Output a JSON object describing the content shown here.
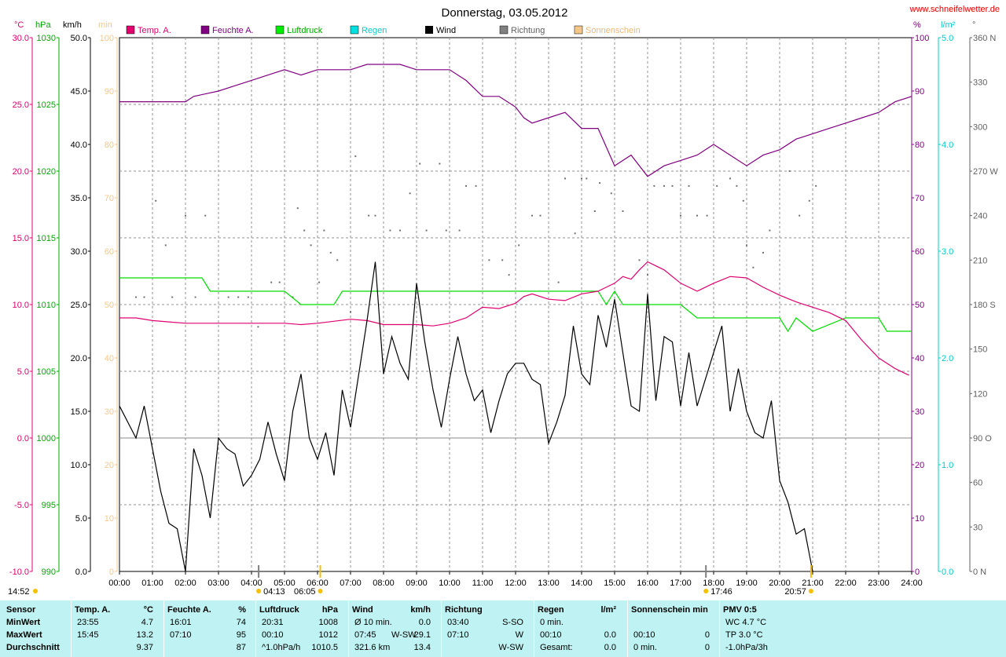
{
  "header": {
    "title": "Donnerstag, 03.05.2012",
    "website": "www.schneifelwetter.de",
    "time_marker": "14:52"
  },
  "axes": {
    "temp": {
      "unit": "°C",
      "ticks": [
        "30.0",
        "25.0",
        "20.0",
        "15.0",
        "10.0",
        "5.0",
        "0.0",
        "-5.0",
        "-10.0"
      ]
    },
    "pressure": {
      "unit": "hPa",
      "ticks": [
        "1030",
        "1025",
        "1020",
        "1015",
        "1010",
        "1005",
        "1000",
        "995",
        "990"
      ]
    },
    "wind": {
      "unit": "km/h",
      "ticks": [
        "50.0",
        "45.0",
        "40.0",
        "35.0",
        "30.0",
        "25.0",
        "20.0",
        "15.0",
        "10.0",
        "5.0",
        "0.0"
      ]
    },
    "sun": {
      "unit": "min",
      "ticks": [
        "100",
        "90",
        "80",
        "70",
        "60",
        "50",
        "40",
        "30",
        "20",
        "10",
        "0"
      ]
    },
    "humidity": {
      "unit": "%",
      "ticks": [
        "100",
        "90",
        "80",
        "70",
        "60",
        "50",
        "40",
        "30",
        "20",
        "10",
        "0"
      ]
    },
    "rain": {
      "unit": "l/m²",
      "ticks": [
        "5.0",
        "4.0",
        "3.0",
        "2.0",
        "1.0",
        "0.0"
      ]
    },
    "direction": {
      "unit": "°",
      "ticks": [
        "360 N",
        "330",
        "300",
        "270 W",
        "240",
        "210",
        "180 S",
        "150",
        "120",
        "90 O",
        "60",
        "30",
        "0 N"
      ]
    },
    "time_ticks": [
      "00:00",
      "01:00",
      "02:00",
      "03:00",
      "04:00",
      "05:00",
      "06:00",
      "07:00",
      "08:00",
      "09:00",
      "10:00",
      "11:00",
      "12:00",
      "13:00",
      "14:00",
      "15:00",
      "16:00",
      "17:00",
      "18:00",
      "19:00",
      "20:00",
      "21:00",
      "22:00",
      "23:00",
      "24:00"
    ]
  },
  "markers": {
    "twilight_start": "04:13",
    "sunrise": "06:05",
    "sunset": "17:46",
    "twilight_end": "20:57"
  },
  "colors": {
    "temperature": "#e0006e",
    "humidity": "#800080",
    "pressure": "#00cc00",
    "rain": "#00e0e0",
    "wind": "#000000",
    "direction": "#808080",
    "sunshine": "#f5c88a",
    "stats_bg": "#bff3f3"
  },
  "chart_data": {
    "type": "line",
    "title": "Donnerstag, 03.05.2012",
    "x_unit": "hours",
    "xlim": [
      0,
      24
    ],
    "series": [
      {
        "name": "Temp. A.",
        "unit": "°C",
        "ylim": [
          -10,
          30
        ],
        "x": [
          0,
          0.5,
          1,
          1.5,
          2,
          3,
          4,
          5,
          5.5,
          6,
          7,
          7.5,
          8,
          9,
          9.5,
          10,
          10.5,
          11,
          11.5,
          12,
          12.25,
          12.5,
          13,
          13.5,
          14,
          14.5,
          15,
          15.25,
          15.5,
          15.75,
          16,
          16.25,
          16.5,
          17,
          17.5,
          18,
          18.5,
          19,
          19.5,
          20,
          20.5,
          21,
          21.5,
          22,
          22.5,
          23,
          23.5,
          23.92
        ],
        "y": [
          9.0,
          9.0,
          8.8,
          8.7,
          8.6,
          8.6,
          8.6,
          8.6,
          8.5,
          8.6,
          8.9,
          8.8,
          8.5,
          8.5,
          8.4,
          8.6,
          9.0,
          9.8,
          9.7,
          10.1,
          10.6,
          10.8,
          10.4,
          10.3,
          10.8,
          11.0,
          11.6,
          12.1,
          11.9,
          12.6,
          13.2,
          12.9,
          12.6,
          11.6,
          11.0,
          11.6,
          12.1,
          12.0,
          11.3,
          10.7,
          10.2,
          9.8,
          9.4,
          8.8,
          7.3,
          6.0,
          5.2,
          4.7
        ]
      },
      {
        "name": "Feuchte A.",
        "unit": "%",
        "ylim": [
          0,
          100
        ],
        "x": [
          0,
          1,
          2,
          2.25,
          3,
          3.5,
          4,
          4.5,
          5,
          5.5,
          6,
          6.5,
          7,
          7.5,
          8,
          8.5,
          9,
          9.5,
          10,
          10.5,
          11,
          11.5,
          12,
          12.25,
          12.5,
          13,
          13.5,
          14,
          14.5,
          15,
          15.5,
          16,
          16.5,
          17,
          17.5,
          18,
          18.5,
          19,
          19.5,
          20,
          20.5,
          21,
          21.5,
          22,
          22.5,
          23,
          23.5,
          24
        ],
        "y": [
          88,
          88,
          88,
          89,
          90,
          91,
          92,
          93,
          94,
          93,
          94,
          94,
          94,
          95,
          95,
          95,
          94,
          94,
          94,
          92,
          89,
          89,
          87,
          85,
          84,
          85,
          86,
          83,
          83,
          76,
          78,
          74,
          76,
          77,
          78,
          80,
          78,
          76,
          78,
          79,
          81,
          82,
          83,
          84,
          85,
          86,
          88,
          89
        ]
      },
      {
        "name": "Luftdruck",
        "unit": "hPa",
        "ylim": [
          990,
          1030
        ],
        "x": [
          0,
          2.5,
          2.75,
          5,
          5.5,
          6.5,
          6.75,
          8,
          10,
          12,
          14,
          14.5,
          14.75,
          15,
          15.25,
          17,
          17.5,
          18,
          20,
          20.25,
          20.5,
          21,
          22,
          23,
          23.25,
          24
        ],
        "y": [
          1012,
          1012,
          1011,
          1011,
          1010,
          1010,
          1011,
          1011,
          1011,
          1011,
          1011,
          1011,
          1010,
          1011,
          1010,
          1010,
          1009,
          1009,
          1009,
          1008,
          1009,
          1008,
          1009,
          1009,
          1008,
          1008
        ]
      },
      {
        "name": "Wind",
        "unit": "km/h",
        "ylim": [
          0,
          50
        ],
        "x": [
          0,
          0.5,
          0.75,
          1,
          1.25,
          1.5,
          1.75,
          2,
          2.25,
          2.5,
          2.75,
          3,
          3.25,
          3.5,
          3.75,
          4,
          4.25,
          4.5,
          4.75,
          5,
          5.25,
          5.5,
          5.75,
          6,
          6.25,
          6.5,
          6.75,
          7,
          7.25,
          7.5,
          7.75,
          8,
          8.25,
          8.5,
          8.75,
          9,
          9.25,
          9.5,
          9.75,
          10,
          10.25,
          10.5,
          10.75,
          11,
          11.25,
          11.5,
          11.75,
          12,
          12.25,
          12.5,
          12.75,
          13,
          13.25,
          13.5,
          13.75,
          14,
          14.25,
          14.5,
          14.75,
          15,
          15.25,
          15.5,
          15.75,
          16,
          16.25,
          16.5,
          16.75,
          17,
          17.25,
          17.5,
          17.75,
          18,
          18.25,
          18.5,
          18.75,
          19,
          19.25,
          19.5,
          19.75,
          20,
          20.25,
          20.5,
          20.75,
          21
        ],
        "y": [
          15.5,
          12.5,
          15.5,
          11.5,
          7.5,
          4.5,
          4,
          0,
          11.5,
          9,
          5,
          12.5,
          11.5,
          11,
          8,
          9,
          10.5,
          14,
          11,
          8.5,
          15,
          18.5,
          12.5,
          10.5,
          13,
          9,
          17,
          13.5,
          18.5,
          23.5,
          29,
          18.5,
          22,
          19.5,
          18,
          27,
          21.5,
          17,
          13.5,
          18,
          22,
          18.5,
          16,
          17,
          13,
          16,
          18.5,
          19.5,
          19.5,
          18,
          17.5,
          12,
          14,
          16.5,
          23,
          18.5,
          17.5,
          24,
          21,
          25.5,
          20.5,
          15.5,
          15,
          26,
          16,
          22,
          21.5,
          15.5,
          20.5,
          15.5,
          18,
          20.5,
          23,
          15,
          19,
          15,
          13,
          12.5,
          16,
          8.5,
          6.5,
          3.5,
          4,
          0
        ]
      },
      {
        "name": "Richtung",
        "unit": "°",
        "ylim": [
          0,
          360
        ],
        "x": [
          0.5,
          0.75,
          1.1,
          1.4,
          1.6,
          2.0,
          2.3,
          2.6,
          3.3,
          3.6,
          3.9,
          4.2,
          4.6,
          4.85,
          5.25,
          5.4,
          5.6,
          5.8,
          6.05,
          6.2,
          6.4,
          6.6,
          7.0,
          7.15,
          7.55,
          7.75,
          8.2,
          8.5,
          8.8,
          9.1,
          9.3,
          9.7,
          9.9,
          10.3,
          10.5,
          10.8,
          11.2,
          11.6,
          11.8,
          12.1,
          12.5,
          12.75,
          13.3,
          13.5,
          13.8,
          14.0,
          14.15,
          14.4,
          14.55,
          14.9,
          15.25,
          15.75,
          16.0,
          16.2,
          16.5,
          16.75,
          17.0,
          17.25,
          17.5,
          17.8,
          18.1,
          18.5,
          18.7,
          18.9,
          19.0,
          19.2,
          19.5,
          19.7,
          20.3,
          20.6,
          20.9,
          21.1
        ],
        "y": [
          185,
          185,
          250,
          220,
          185,
          240,
          185,
          240,
          185,
          185,
          185,
          165,
          195,
          195,
          185,
          245,
          230,
          220,
          195,
          230,
          215,
          210,
          175,
          280,
          240,
          240,
          230,
          230,
          255,
          275,
          230,
          275,
          230,
          230,
          260,
          260,
          210,
          210,
          200,
          220,
          240,
          240,
          195,
          265,
          228,
          265,
          265,
          243,
          262,
          255,
          243,
          210,
          200,
          260,
          260,
          260,
          240,
          260,
          240,
          240,
          260,
          265,
          260,
          250,
          220,
          205,
          215,
          230,
          270,
          240,
          250,
          260
        ]
      }
    ],
    "sun_markers": {
      "sunrise": "06:05",
      "sunset": "17:46",
      "twilight_start": "04:13",
      "twilight_end": "20:57"
    }
  },
  "stats": {
    "columns": [
      {
        "title": "Sensor",
        "unit": "",
        "rows": [
          "MinWert",
          "MaxWert",
          "Durchschnitt"
        ]
      },
      {
        "title": "Temp. A.",
        "unit": "°C",
        "times": [
          "23:55",
          "15:45",
          ""
        ],
        "values": [
          "4.7",
          "13.2",
          "9.37"
        ]
      },
      {
        "title": "Feuchte A.",
        "unit": "%",
        "times": [
          "16:01",
          "07:10",
          ""
        ],
        "values": [
          "74",
          "95",
          "87"
        ]
      },
      {
        "title": "Luftdruck",
        "unit": "hPa",
        "times": [
          "20:31",
          "00:10",
          "^1.0hPa/h"
        ],
        "values": [
          "1008",
          "1012",
          "1010.5"
        ]
      },
      {
        "title": "Wind",
        "unit": "km/h",
        "times": [
          "Ø 10 min.",
          "07:45",
          "321.6 km"
        ],
        "dirs": [
          "",
          "W-SW",
          ""
        ],
        "values": [
          "0.0",
          "29.1",
          "13.4"
        ]
      },
      {
        "title": "Richtung",
        "unit": "",
        "times": [
          "03:40",
          "07:10",
          ""
        ],
        "values": [
          "S-SO",
          "W",
          "W-SW"
        ]
      },
      {
        "title": "Regen",
        "unit": "l/m²",
        "times": [
          "0 min.",
          "00:10",
          "Gesamt:"
        ],
        "values": [
          "",
          "0.0",
          "0.0"
        ]
      },
      {
        "title": "Sonnenschein min",
        "unit": "",
        "times": [
          "",
          "00:10",
          "0 min."
        ],
        "values": [
          "",
          "0",
          "0"
        ]
      },
      {
        "title": "PMV 0:5",
        "unit": "",
        "times": [
          "WC 4.7 °C",
          "TP 3.0 °C",
          "-1.0hPa/3h"
        ],
        "values": [
          "",
          "",
          ""
        ]
      }
    ]
  }
}
